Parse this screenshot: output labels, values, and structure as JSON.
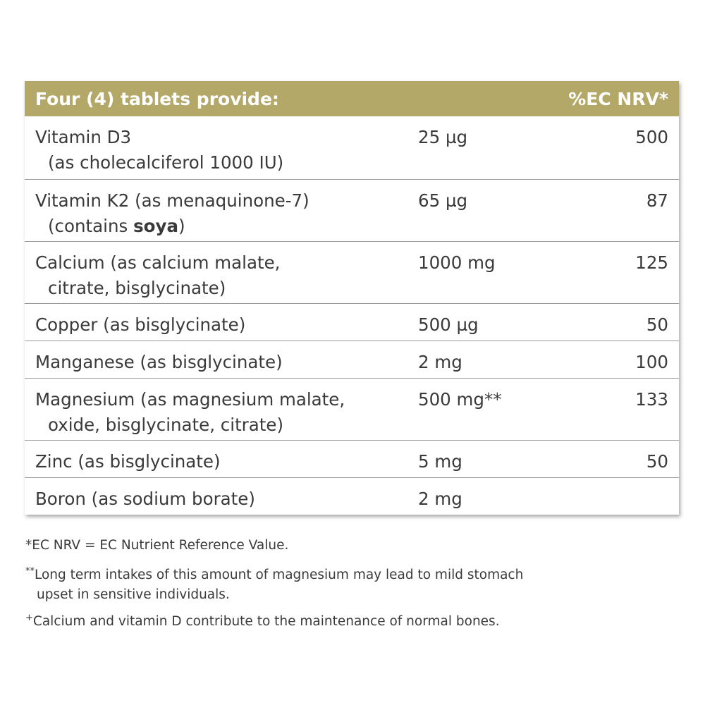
{
  "header": {
    "title": "Four (4) tablets provide:",
    "nrv_label": "%EC NRV*"
  },
  "rows": [
    {
      "name": "Vitamin D3",
      "sub": "(as cholecalciferol 1000 IU)",
      "amount": "25 µg",
      "nrv": "500"
    },
    {
      "name": "Vitamin K2 (as menaquinone-7)",
      "sub_pre": "(contains ",
      "sub_bold": "soya",
      "sub_post": ")",
      "amount": "65 µg",
      "nrv": "87"
    },
    {
      "name": "Calcium (as calcium malate,",
      "sub": "citrate, bisglycinate)",
      "amount": "1000 mg",
      "nrv": "125"
    },
    {
      "name": "Copper (as bisglycinate)",
      "amount": "500 µg",
      "nrv": "50"
    },
    {
      "name": "Manganese (as bisglycinate)",
      "amount": "2 mg",
      "nrv": "100"
    },
    {
      "name": "Magnesium (as magnesium malate,",
      "sub": "oxide, bisglycinate, citrate)",
      "amount": "500 mg**",
      "nrv": "133"
    },
    {
      "name": "Zinc (as bisglycinate)",
      "amount": "5 mg",
      "nrv": "50"
    },
    {
      "name": "Boron (as sodium borate)",
      "amount": "2 mg",
      "nrv": ""
    }
  ],
  "footnotes": {
    "nrv": "*EC NRV = EC Nutrient Reference Value.",
    "mag_mark": "**",
    "mag_line1": "Long term intakes of this amount of magnesium may lead to mild stomach",
    "mag_line2": "upset in sensitive individuals.",
    "claim_mark": "+",
    "claim": "Calcium and vitamin D contribute to the maintenance of normal bones."
  },
  "colors": {
    "header_bg": "#b3a868",
    "text": "#3a3a3a"
  }
}
